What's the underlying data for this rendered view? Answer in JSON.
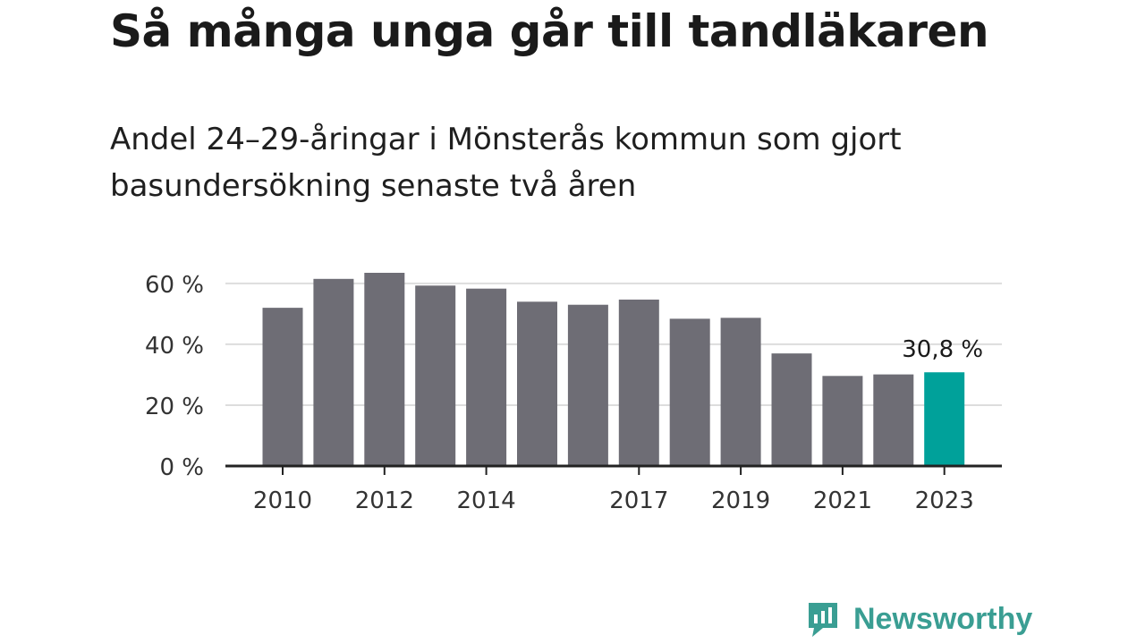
{
  "header": {
    "title": "Så många unga går till tandläkaren",
    "subtitle": "Andel 24–29-åringar i Mönsterås kommun som gjort basundersökning senaste två åren"
  },
  "brand": {
    "name": "Newsworthy",
    "color": "#3a9e93"
  },
  "colors": {
    "bar": "#6e6d75",
    "highlight": "#00a19a",
    "grid": "#dddddd",
    "axis": "#222222"
  },
  "chart_data": {
    "type": "bar",
    "title": "Så många unga går till tandläkaren",
    "subtitle": "Andel 24–29-åringar i Mönsterås kommun som gjort basundersökning senaste två åren",
    "categories": [
      2010,
      2011,
      2012,
      2013,
      2014,
      2015,
      2016,
      2017,
      2018,
      2019,
      2020,
      2021,
      2022,
      2023
    ],
    "values": [
      52,
      61.5,
      63.5,
      59.3,
      58.3,
      54,
      53,
      54.7,
      48.4,
      48.7,
      37,
      29.6,
      30.1,
      30.8
    ],
    "x_tick_labels": [
      "2010",
      "",
      "2012",
      "",
      "2014",
      "",
      "",
      "2017",
      "",
      "2019",
      "",
      "2021",
      "",
      "2023"
    ],
    "y_ticks": [
      0,
      20,
      40,
      60
    ],
    "y_tick_labels": [
      "0 %",
      "20 %",
      "40 %",
      "60 %"
    ],
    "ylim": [
      0,
      63.5
    ],
    "highlight_index": 13,
    "annotation": "30,8 %",
    "grid": true,
    "xlabel": "",
    "ylabel": ""
  }
}
